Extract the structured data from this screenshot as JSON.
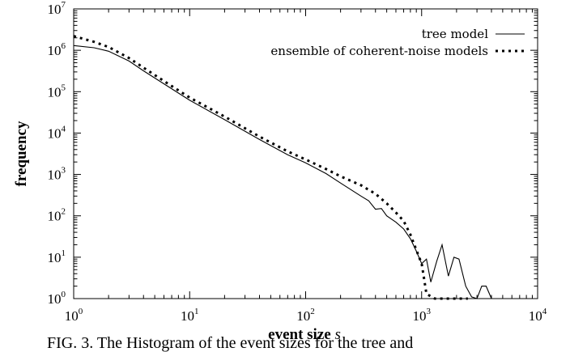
{
  "chart_data": {
    "type": "line",
    "title": "",
    "xlabel": "event size",
    "xlabel_var": "s",
    "ylabel": "frequency",
    "x_scale": "log",
    "y_scale": "log",
    "xlim": [
      1,
      10000
    ],
    "ylim": [
      1,
      10000000
    ],
    "grid": false,
    "legend_position": "top-right",
    "x_ticks": [
      {
        "base": "10",
        "exp": "0",
        "value": 1
      },
      {
        "base": "10",
        "exp": "1",
        "value": 10
      },
      {
        "base": "10",
        "exp": "2",
        "value": 100
      },
      {
        "base": "10",
        "exp": "3",
        "value": 1000
      },
      {
        "base": "10",
        "exp": "4",
        "value": 10000
      }
    ],
    "y_ticks": [
      {
        "base": "10",
        "exp": "0",
        "value": 1
      },
      {
        "base": "10",
        "exp": "1",
        "value": 10
      },
      {
        "base": "10",
        "exp": "2",
        "value": 100
      },
      {
        "base": "10",
        "exp": "3",
        "value": 1000
      },
      {
        "base": "10",
        "exp": "4",
        "value": 10000
      },
      {
        "base": "10",
        "exp": "5",
        "value": 100000
      },
      {
        "base": "10",
        "exp": "6",
        "value": 1000000
      },
      {
        "base": "10",
        "exp": "7",
        "value": 10000000
      }
    ],
    "series": [
      {
        "name": "tree model",
        "style": "solid",
        "color": "#000000",
        "points": [
          [
            1,
            1300000
          ],
          [
            1.5,
            1150000
          ],
          [
            2,
            950000
          ],
          [
            3,
            550000
          ],
          [
            4,
            320000
          ],
          [
            6,
            155000
          ],
          [
            10,
            62000
          ],
          [
            20,
            21000
          ],
          [
            40,
            7000
          ],
          [
            70,
            3000
          ],
          [
            100,
            1900
          ],
          [
            150,
            1050
          ],
          [
            200,
            620
          ],
          [
            300,
            300
          ],
          [
            350,
            230
          ],
          [
            400,
            145
          ],
          [
            450,
            150
          ],
          [
            500,
            100
          ],
          [
            600,
            70
          ],
          [
            700,
            48
          ],
          [
            800,
            28
          ],
          [
            900,
            14
          ],
          [
            1000,
            7
          ],
          [
            1100,
            9
          ],
          [
            1200,
            2.5
          ],
          [
            1350,
            8
          ],
          [
            1500,
            20
          ],
          [
            1700,
            3.5
          ],
          [
            1900,
            10
          ],
          [
            2100,
            9
          ],
          [
            2400,
            2
          ],
          [
            2700,
            1.1
          ],
          [
            3000,
            1
          ],
          [
            3300,
            2
          ],
          [
            3600,
            2
          ],
          [
            4000,
            1
          ]
        ]
      },
      {
        "name": "ensemble of coherent-noise models",
        "style": "dotted",
        "color": "#000000",
        "points": [
          [
            1,
            2200000
          ],
          [
            1.5,
            1600000
          ],
          [
            2,
            1200000
          ],
          [
            3,
            650000
          ],
          [
            4,
            380000
          ],
          [
            6,
            180000
          ],
          [
            10,
            72000
          ],
          [
            20,
            25000
          ],
          [
            40,
            8200
          ],
          [
            70,
            3600
          ],
          [
            100,
            2300
          ],
          [
            150,
            1350
          ],
          [
            200,
            900
          ],
          [
            300,
            550
          ],
          [
            400,
            340
          ],
          [
            500,
            200
          ],
          [
            600,
            120
          ],
          [
            700,
            75
          ],
          [
            800,
            35
          ],
          [
            900,
            15
          ],
          [
            1000,
            7
          ],
          [
            1050,
            3
          ],
          [
            1100,
            1.3
          ],
          [
            1300,
            1
          ],
          [
            2000,
            1
          ],
          [
            2500,
            1
          ]
        ]
      }
    ]
  },
  "caption": {
    "text": "FIG. 3.  The Histogram of the event sizes for the tree and"
  }
}
